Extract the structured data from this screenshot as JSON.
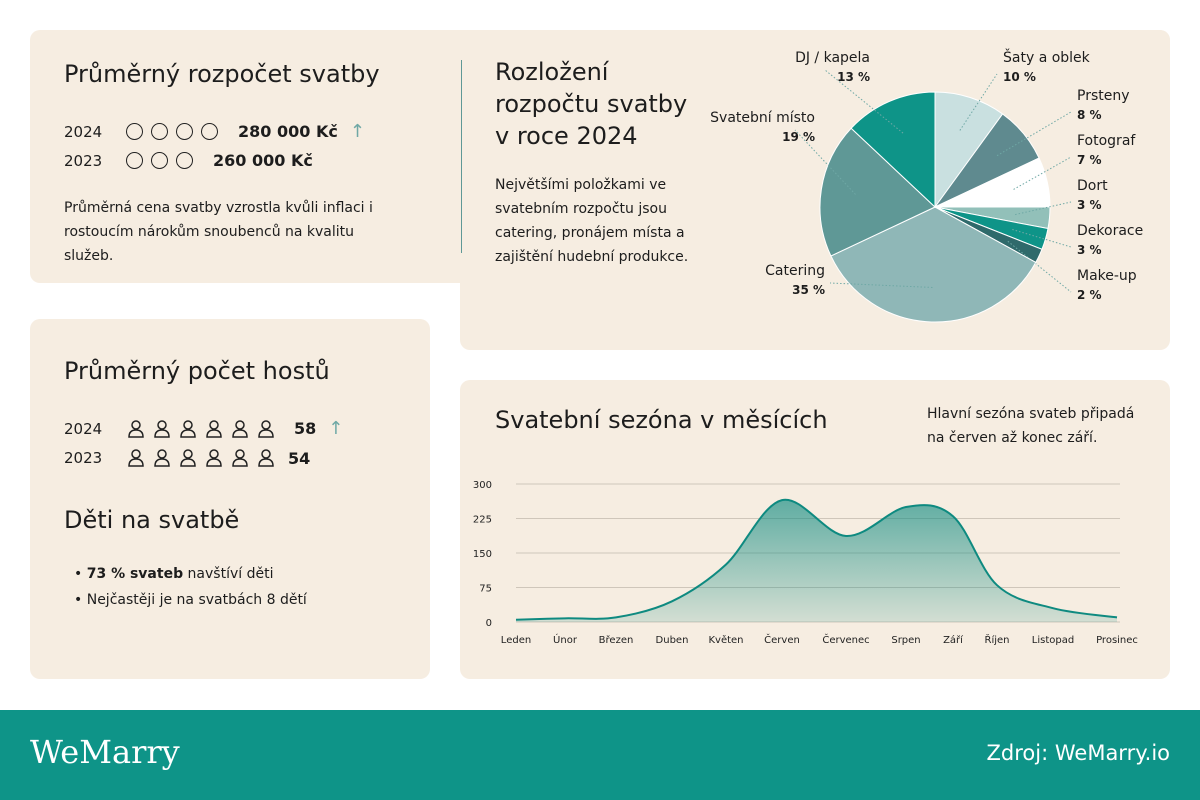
{
  "budget": {
    "title": "Průměrný rozpočet svatby",
    "rows": [
      {
        "year": "2024",
        "circles": 4,
        "value": "280 000 Kč",
        "trend": "↑"
      },
      {
        "year": "2023",
        "circles": 3,
        "value": "260 000 Kč"
      }
    ],
    "note": "Průměrná cena svatby vzrostla kvůli inflaci i rostoucím nárokům snoubenců na kvalitu služeb."
  },
  "breakdown": {
    "title": "Rozložení rozpočtu svatby v roce 2024",
    "note": "Největšími položkami ve svatebním rozpočtu jsou catering, pronájem místa a zajištění hudební produkce."
  },
  "guests": {
    "title": "Průměrný počet hostů",
    "rows": [
      {
        "year": "2024",
        "icons": 6,
        "value": "58",
        "trend": "↑"
      },
      {
        "year": "2023",
        "icons": 6,
        "value": "54"
      }
    ]
  },
  "kids": {
    "title": "Děti na svatbě",
    "bullets": [
      {
        "bold": "73 % svateb",
        "rest": " navštíví děti"
      },
      {
        "bold": "",
        "rest": "Nejčastěji je na svatbách 8 dětí"
      }
    ]
  },
  "season": {
    "title": "Svatební sezóna v měsících",
    "note": "Hlavní sezóna svateb připadá na červen až konec září."
  },
  "footer": {
    "logo": "WeMarry",
    "source": "Zdroj: WeMarry.io"
  },
  "chart_data": [
    {
      "type": "pie",
      "title": "Rozložení rozpočtu svatby v roce 2024",
      "slices": [
        {
          "label": "Šaty a oblek",
          "value": 10,
          "pct": "10 %",
          "color": "#c9e0e0"
        },
        {
          "label": "Prsteny",
          "value": 8,
          "pct": "8 %",
          "color": "#5f8a8f"
        },
        {
          "label": "Fotograf",
          "value": 7,
          "pct": "7 %",
          "color": "#ffffff"
        },
        {
          "label": "Dort",
          "value": 3,
          "pct": "3 %",
          "color": "#92c0b9"
        },
        {
          "label": "Dekorace",
          "value": 3,
          "pct": "3 %",
          "color": "#0e9488"
        },
        {
          "label": "Make-up",
          "value": 2,
          "pct": "2 %",
          "color": "#2f6a6b"
        },
        {
          "label": "Catering",
          "value": 35,
          "pct": "35 %",
          "color": "#8fb7b7"
        },
        {
          "label": "Svatební místo",
          "value": 19,
          "pct": "19 %",
          "color": "#5f9896"
        },
        {
          "label": "DJ / kapela",
          "value": 13,
          "pct": "13 %",
          "color": "#0e9488"
        }
      ]
    },
    {
      "type": "area",
      "title": "Svatební sezóna v měsících",
      "categories": [
        "Leden",
        "Únor",
        "Březen",
        "Duben",
        "Květen",
        "Červen",
        "Červenec",
        "Srpen",
        "Září",
        "Říjen",
        "Listopad",
        "Prosinec"
      ],
      "values": [
        5,
        8,
        10,
        45,
        125,
        265,
        187,
        250,
        230,
        80,
        30,
        10
      ],
      "yticks": [
        0,
        75,
        150,
        225,
        300
      ],
      "ylim": [
        0,
        300
      ],
      "color": "#0e8a80"
    }
  ]
}
